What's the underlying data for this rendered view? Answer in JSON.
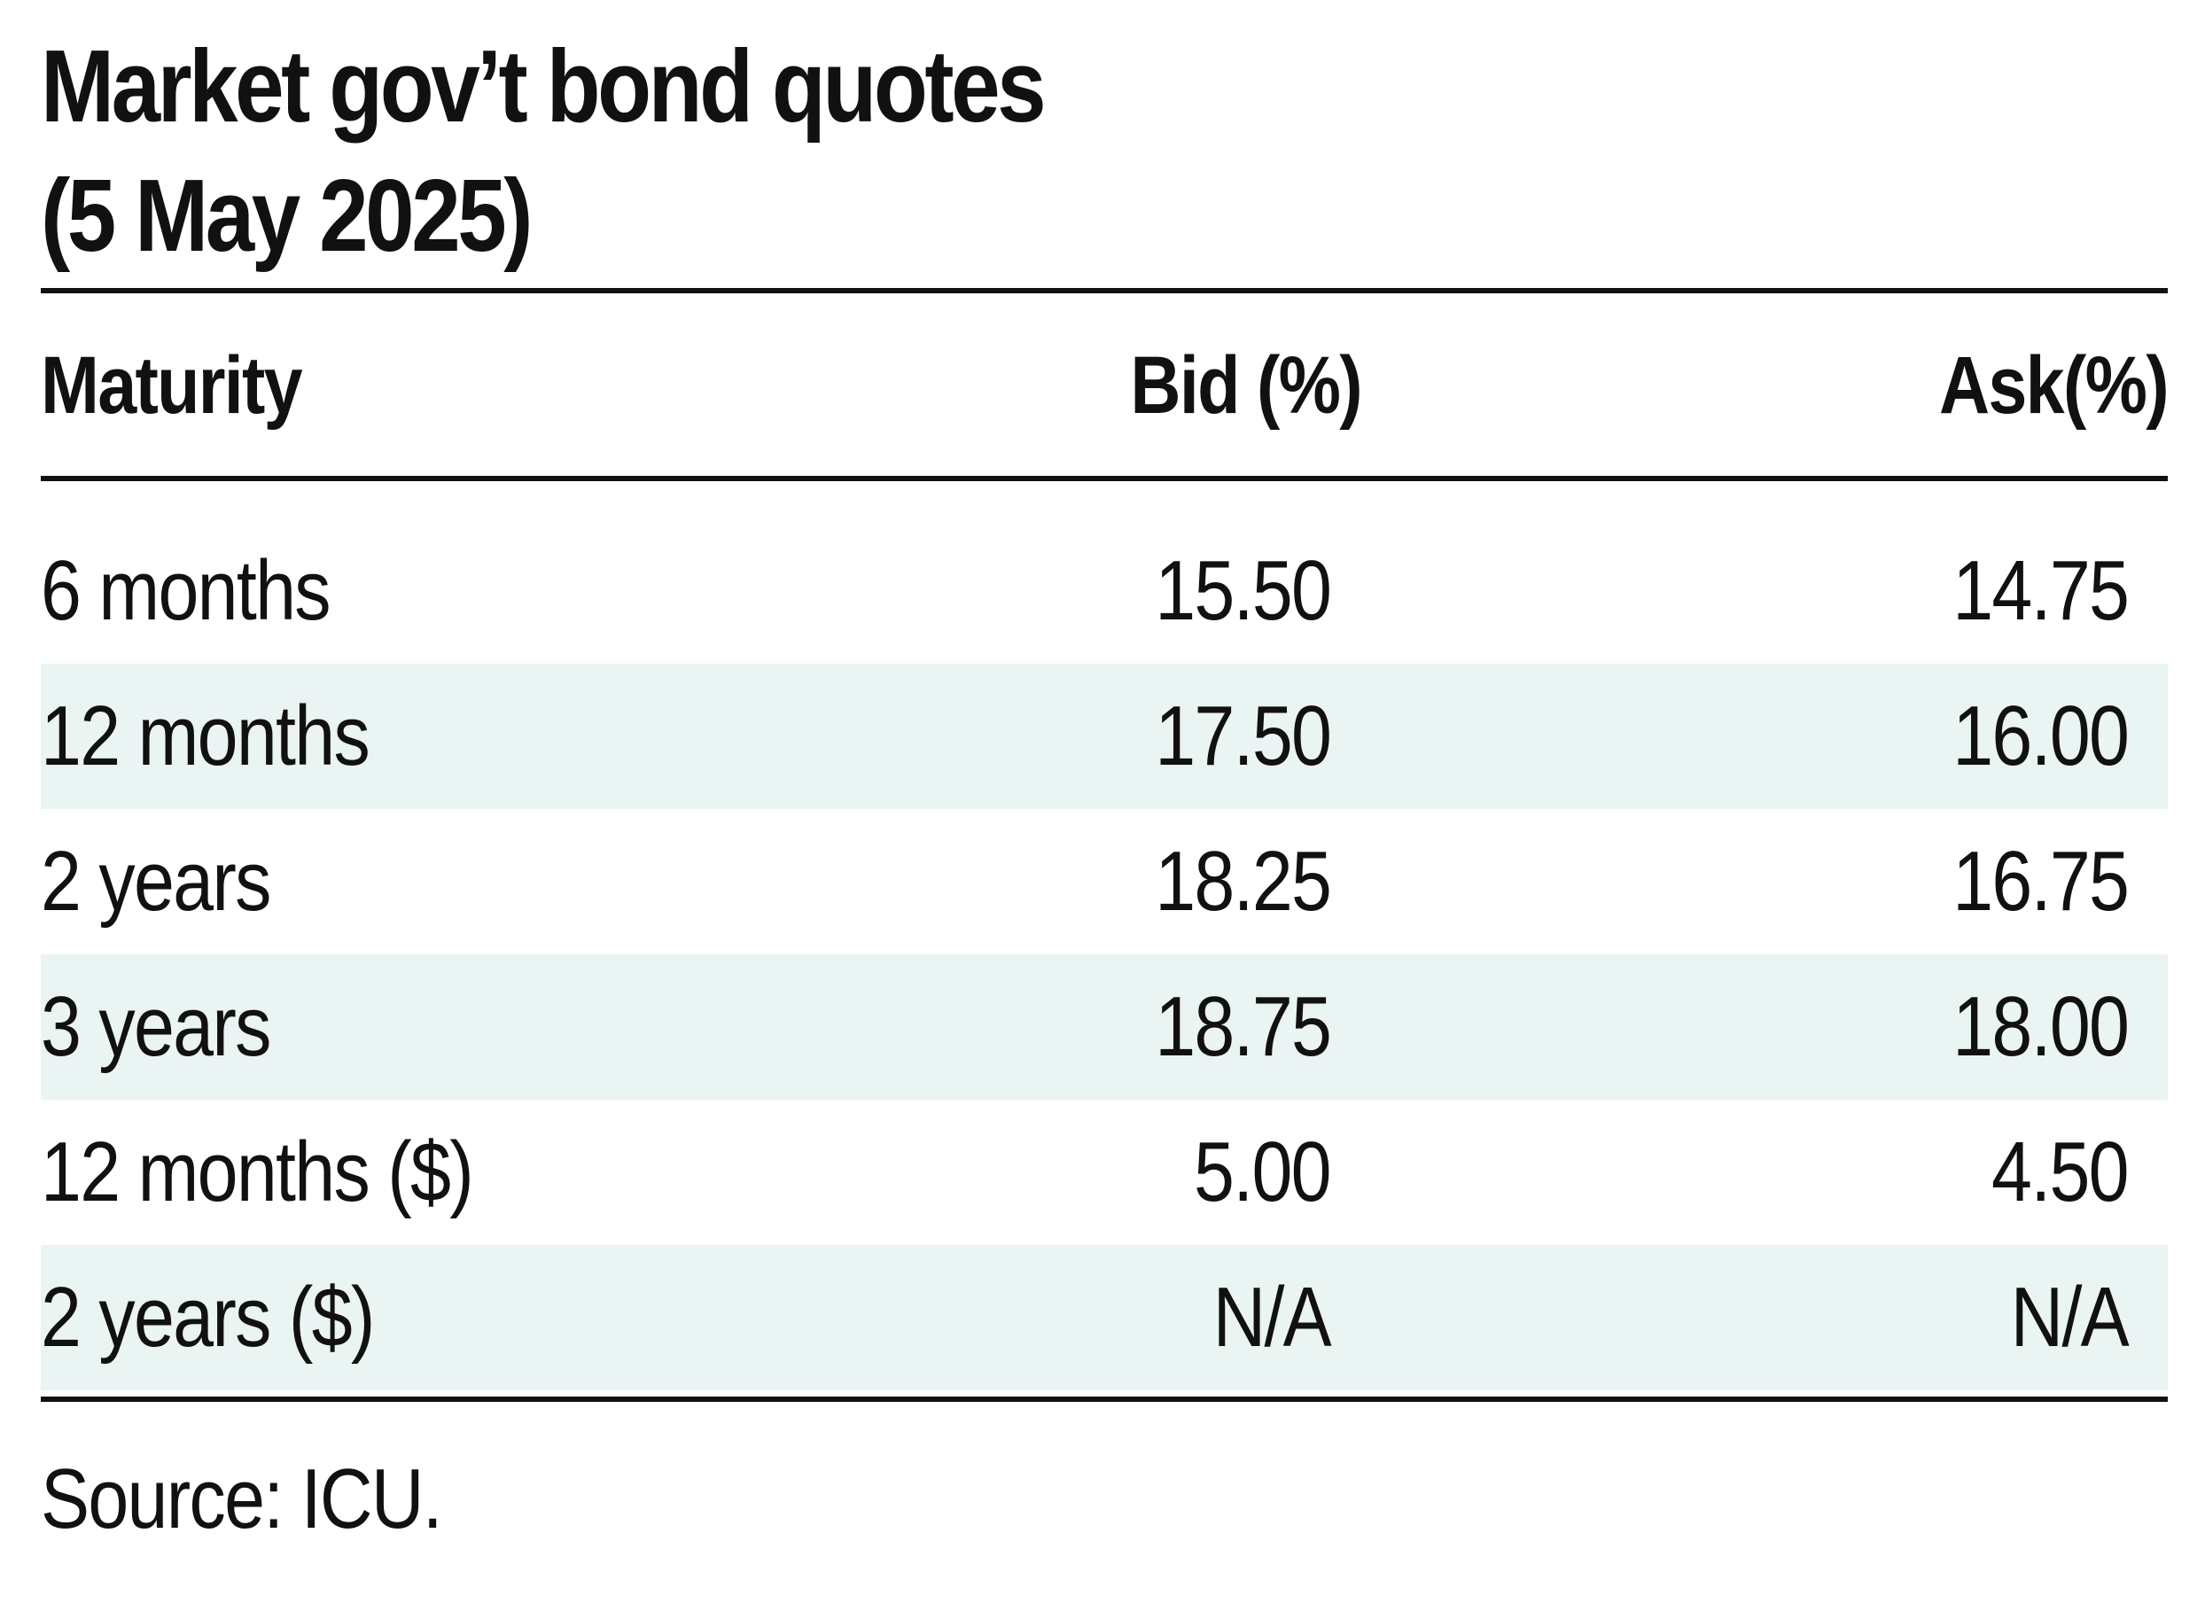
{
  "chart_data": {
    "type": "table",
    "title": "Market gov’t bond quotes",
    "subtitle": "(5 May 2025)",
    "columns": [
      "Maturity",
      "Bid (%)",
      "Ask(%)"
    ],
    "rows": [
      {
        "maturity": "6 months",
        "bid": "15.50",
        "ask": "14.75"
      },
      {
        "maturity": "12 months",
        "bid": "17.50",
        "ask": "16.00"
      },
      {
        "maturity": "2 years",
        "bid": "18.25",
        "ask": "16.75"
      },
      {
        "maturity": "3 years",
        "bid": "18.75",
        "ask": "18.00"
      },
      {
        "maturity": "12 months ($)",
        "bid": "5.00",
        "ask": "4.50"
      },
      {
        "maturity": "2 years ($)",
        "bid": "N/A",
        "ask": "N/A"
      }
    ],
    "source": "Source: ICU.",
    "row_shading_color": "#eaf4f3",
    "rule_color": "#111111"
  }
}
